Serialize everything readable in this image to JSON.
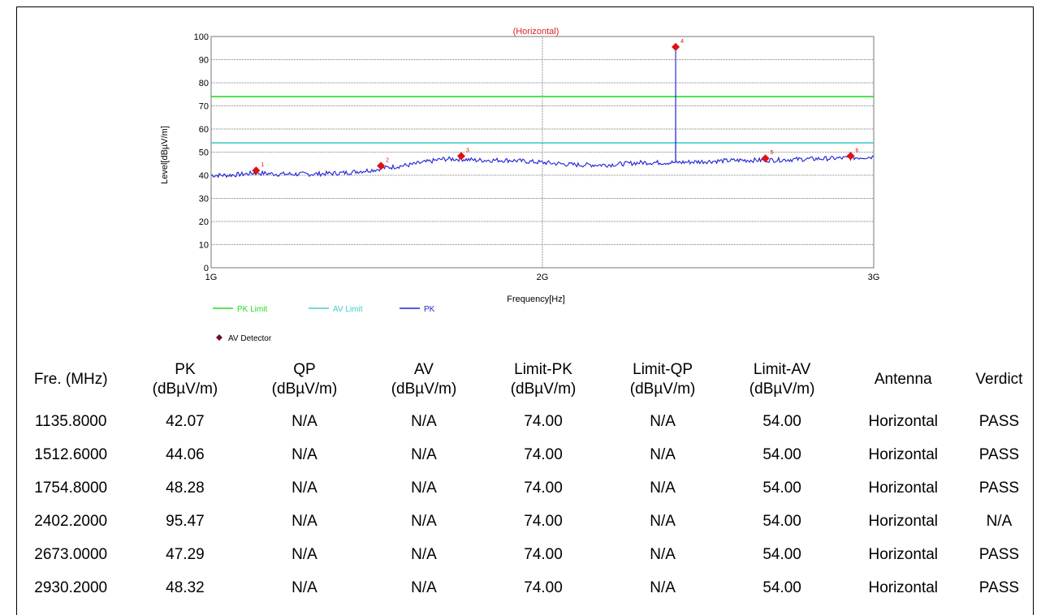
{
  "chart_data": {
    "type": "line",
    "title": "(Horizontal)",
    "xlabel": "Frequency[Hz]",
    "ylabel": "Level[dBµV/m]",
    "x_scale": "linear",
    "xlim": [
      1000000000,
      3000000000
    ],
    "ylim": [
      0,
      100
    ],
    "x_ticks": [
      {
        "value": 1000000000,
        "label": "1G"
      },
      {
        "value": 2000000000,
        "label": "2G"
      },
      {
        "value": 3000000000,
        "label": "3G"
      }
    ],
    "y_ticks": [
      0,
      10,
      20,
      30,
      40,
      50,
      60,
      70,
      80,
      90,
      100
    ],
    "grid": true,
    "legend_position": "bottom-left",
    "limits": [
      {
        "name": "PK Limit",
        "value": 74,
        "color": "#22dd22"
      },
      {
        "name": "AV Limit",
        "value": 54,
        "color": "#44cccc"
      }
    ],
    "series": [
      {
        "name": "PK",
        "color": "#1f22d6",
        "x": [
          1000000000,
          1050000000,
          1100000000,
          1135800000,
          1200000000,
          1300000000,
          1400000000,
          1500000000,
          1512600000,
          1600000000,
          1700000000,
          1754800000,
          1800000000,
          1900000000,
          2000000000,
          2100000000,
          2200000000,
          2300000000,
          2402000000,
          2402200000,
          2402400000,
          2500000000,
          2600000000,
          2673000000,
          2800000000,
          2930200000,
          3000000000
        ],
        "y": [
          40.0,
          40.0,
          40.5,
          41.0,
          40.5,
          40.5,
          41.0,
          42.5,
          43.0,
          44.5,
          47.0,
          47.0,
          46.5,
          46.5,
          45.5,
          44.5,
          44.5,
          45.5,
          45.5,
          95.47,
          45.5,
          46.0,
          46.5,
          46.5,
          47.0,
          47.5,
          48.0
        ]
      }
    ],
    "markers": {
      "name": "AV Detector",
      "color": "#dd1111",
      "points": [
        {
          "label": "1",
          "x": 1135800000,
          "y": 42.07
        },
        {
          "label": "2",
          "x": 1512600000,
          "y": 44.06
        },
        {
          "label": "3",
          "x": 1754800000,
          "y": 48.28
        },
        {
          "label": "4",
          "x": 2402200000,
          "y": 95.47
        },
        {
          "label": "5",
          "x": 2673000000,
          "y": 47.29
        },
        {
          "label": "6",
          "x": 2930200000,
          "y": 48.32
        }
      ]
    },
    "legend": [
      {
        "label": "PK Limit",
        "color": "#22dd22",
        "kind": "line"
      },
      {
        "label": "AV Limit",
        "color": "#44cccc",
        "kind": "line"
      },
      {
        "label": "PK",
        "color": "#1f22d6",
        "kind": "line"
      },
      {
        "label": "AV Detector",
        "color": "#6b0f3a",
        "kind": "diamond"
      }
    ]
  },
  "table": {
    "headers": [
      [
        "Fre. (MHz)"
      ],
      [
        "PK",
        "(dBµV/m)"
      ],
      [
        "QP",
        "(dBµV/m)"
      ],
      [
        "AV",
        "(dBµV/m)"
      ],
      [
        "Limit-PK",
        "(dBµV/m)"
      ],
      [
        "Limit-QP",
        "(dBµV/m)"
      ],
      [
        "Limit-AV",
        "(dBµV/m)"
      ],
      [
        "Antenna"
      ],
      [
        "Verdict"
      ]
    ],
    "rows": [
      [
        "1135.8000",
        "42.07",
        "N/A",
        "N/A",
        "74.00",
        "N/A",
        "54.00",
        "Horizontal",
        "PASS"
      ],
      [
        "1512.6000",
        "44.06",
        "N/A",
        "N/A",
        "74.00",
        "N/A",
        "54.00",
        "Horizontal",
        "PASS"
      ],
      [
        "1754.8000",
        "48.28",
        "N/A",
        "N/A",
        "74.00",
        "N/A",
        "54.00",
        "Horizontal",
        "PASS"
      ],
      [
        "2402.2000",
        "95.47",
        "N/A",
        "N/A",
        "74.00",
        "N/A",
        "54.00",
        "Horizontal",
        "N/A"
      ],
      [
        "2673.0000",
        "47.29",
        "N/A",
        "N/A",
        "74.00",
        "N/A",
        "54.00",
        "Horizontal",
        "PASS"
      ],
      [
        "2930.2000",
        "48.32",
        "N/A",
        "N/A",
        "74.00",
        "N/A",
        "54.00",
        "Horizontal",
        "PASS"
      ]
    ]
  }
}
